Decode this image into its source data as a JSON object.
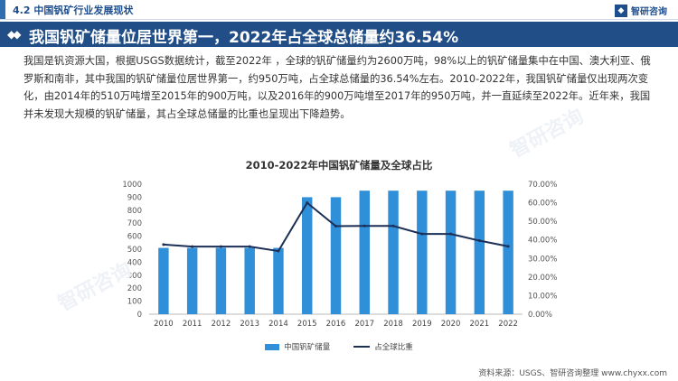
{
  "header": {
    "section_title": "4.2 中国钒矿行业发展现状",
    "brand": "智研咨询"
  },
  "banner": {
    "headline": "我国钒矿储量位居世界第一，2022年占全球总储量约36.54%"
  },
  "body": {
    "paragraph": "我国是钒资源大国，根据USGS数据统计，截至2022年 ，全球的钒矿储量约为2600万吨，98%以上的钒矿储量集中在中国、澳大利亚、俄罗斯和南非，其中我国的钒矿储量位居世界第一，约950万吨，占全球总储量的36.54%左右。2010-2022年，我国钒矿储量仅出现两次变化，由2014年的510万吨增至2015年的900万吨，以及2016年的900万吨增至2017年的950万吨，并一直延续至2022年。近年来，我国并未发现大规模的钒矿储量，其占全球总储量的比重也呈现出下降趋势。"
  },
  "source": "资料来源：USGS、智研咨询整理    www.chyxx.com",
  "watermark_text": "智研咨询",
  "colors": {
    "bar": "#2f8fd8",
    "line": "#1c2f56",
    "banner": "#214e86"
  },
  "chart_data": {
    "type": "bar+line",
    "title": "2010-2022年中国钒矿储量及全球占比",
    "categories": [
      "2010",
      "2011",
      "2012",
      "2013",
      "2014",
      "2015",
      "2016",
      "2017",
      "2018",
      "2019",
      "2020",
      "2021",
      "2022"
    ],
    "series": [
      {
        "name": "中国钒矿储量",
        "type": "bar",
        "axis": "left",
        "values": [
          510,
          510,
          510,
          510,
          510,
          900,
          900,
          950,
          950,
          950,
          950,
          950,
          950
        ]
      },
      {
        "name": "占全球比重",
        "type": "line",
        "axis": "right",
        "values": [
          37.5,
          36.4,
          36.4,
          36.4,
          34.0,
          60.0,
          47.4,
          47.5,
          47.5,
          43.2,
          43.2,
          39.6,
          36.5
        ]
      }
    ],
    "y_left": {
      "min": 0,
      "max": 1000,
      "ticks": [
        "0",
        "100",
        "200",
        "300",
        "400",
        "500",
        "600",
        "700",
        "800",
        "900",
        "1000"
      ]
    },
    "y_right": {
      "min": 0,
      "max": 70,
      "ticks": [
        "0.00%",
        "10.00%",
        "20.00%",
        "30.00%",
        "40.00%",
        "50.00%",
        "60.00%",
        "70.00%"
      ]
    },
    "legend_position": "bottom",
    "grid": false
  }
}
